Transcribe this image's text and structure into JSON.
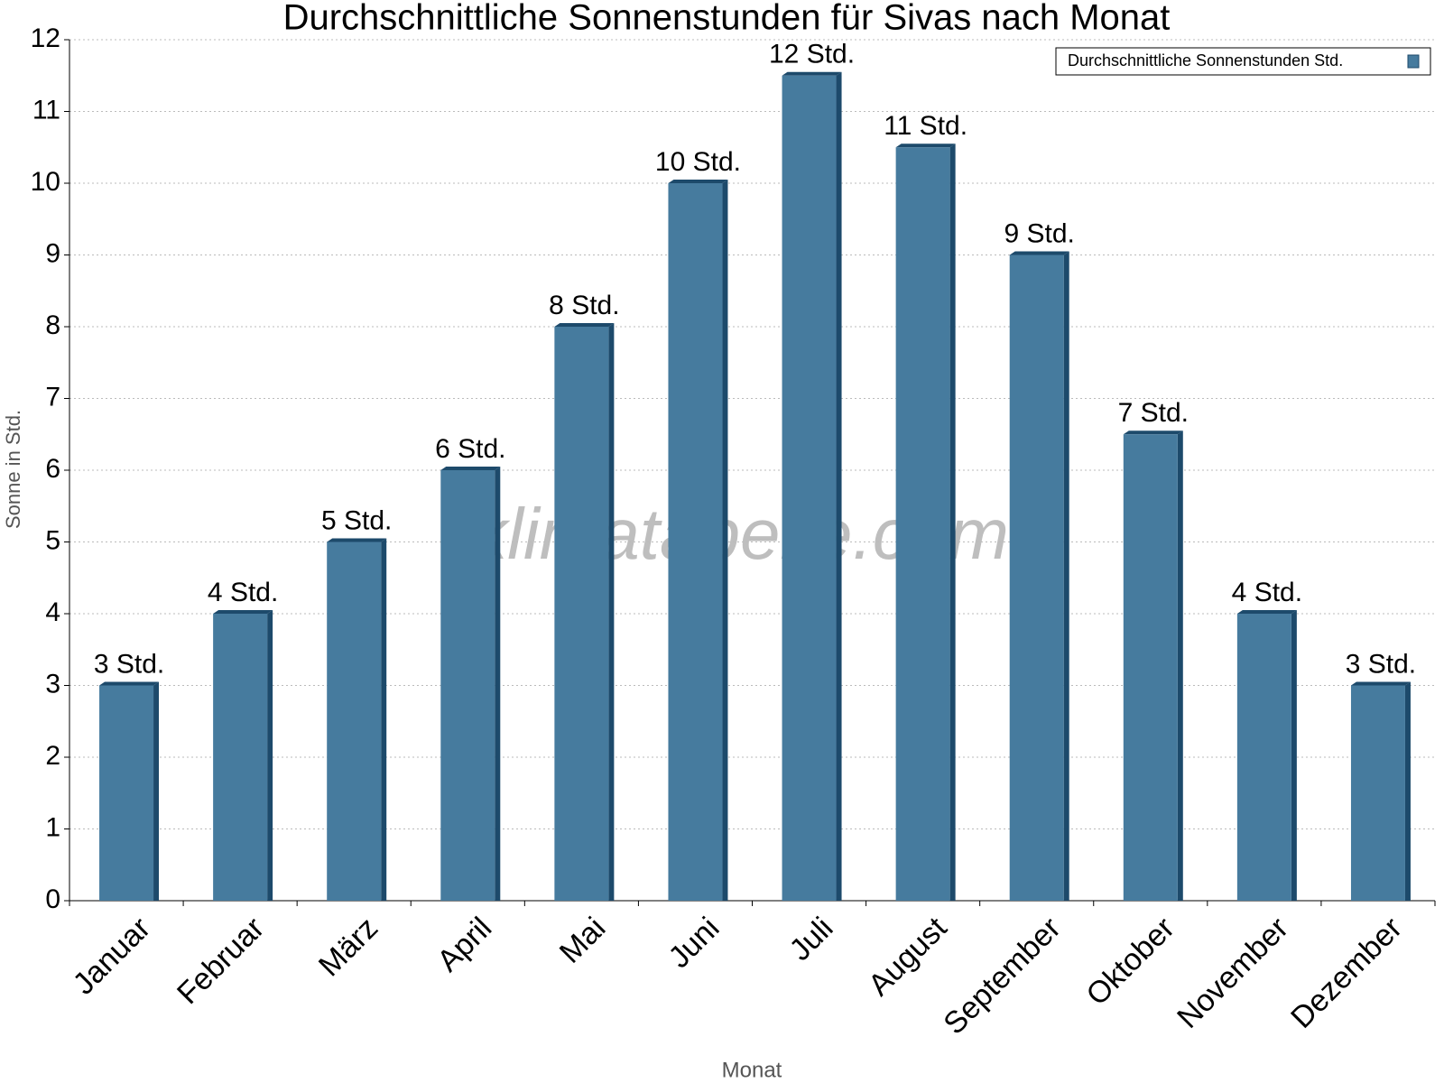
{
  "chart_data": {
    "type": "bar",
    "title": "Durchschnittliche Sonnenstunden für Sivas nach Monat",
    "watermark": "klimatabelle.com",
    "x_label": "Monat",
    "y_label": "Sonne in Std.",
    "categories": [
      "Januar",
      "Februar",
      "März",
      "April",
      "Mai",
      "Juni",
      "Juli",
      "August",
      "September",
      "Oktober",
      "November",
      "Dezember"
    ],
    "series": [
      {
        "name": "Durchschnittliche Sonnenstunden Std.",
        "color": "#467b9e",
        "values": [
          3,
          4,
          5,
          6,
          8,
          10,
          11.5,
          10.5,
          9,
          6.5,
          4,
          3
        ],
        "value_labels": [
          "3 Std.",
          "4 Std.",
          "5 Std.",
          "6 Std.",
          "8 Std.",
          "10 Std.",
          "12 Std.",
          "11 Std.",
          "9 Std.",
          "7 Std.",
          "4 Std.",
          "3 Std."
        ]
      }
    ],
    "ylim": [
      0,
      12
    ],
    "yticks": [
      0,
      1,
      2,
      3,
      4,
      5,
      6,
      7,
      8,
      9,
      10,
      11,
      12
    ],
    "grid": true,
    "legend": "top-right"
  }
}
